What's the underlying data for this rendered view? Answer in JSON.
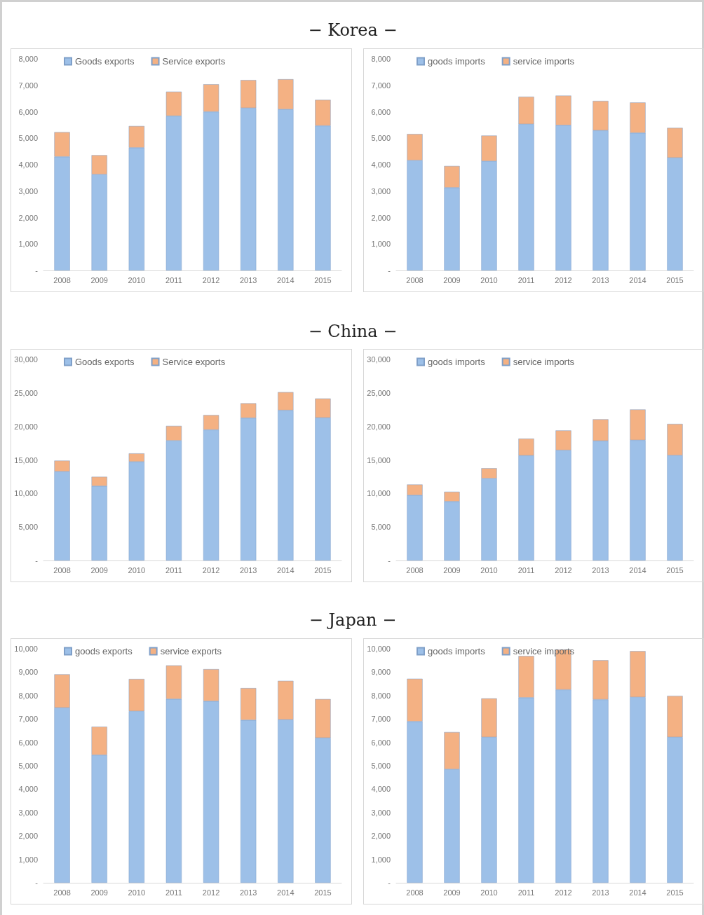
{
  "chart_data": [
    {
      "type": "bar",
      "title": "− Korea −",
      "categories": [
        "2008",
        "2009",
        "2010",
        "2011",
        "2012",
        "2013",
        "2014",
        "2015"
      ],
      "stacked": true,
      "legend": "top left",
      "grid": false,
      "ylim": [
        0,
        8000
      ],
      "yticks": [
        {
          "value": 0,
          "label": "-"
        },
        {
          "value": 1000,
          "label": "1,000"
        },
        {
          "value": 2000,
          "label": "2,000"
        },
        {
          "value": 3000,
          "label": "3,000"
        },
        {
          "value": 4000,
          "label": "4,000"
        },
        {
          "value": 5000,
          "label": "5,000"
        },
        {
          "value": 6000,
          "label": "6,000"
        },
        {
          "value": 7000,
          "label": "7,000"
        },
        {
          "value": 8000,
          "label": "8,000"
        }
      ],
      "series": [
        {
          "name": "Goods exports",
          "color": "#9dc0e8",
          "values": [
            4300,
            3630,
            4640,
            5840,
            6000,
            6140,
            6090,
            5470
          ]
        },
        {
          "name": "Service exports",
          "color": "#f4b183",
          "values": [
            930,
            730,
            820,
            920,
            1040,
            1060,
            1140,
            980
          ]
        }
      ]
    },
    {
      "type": "bar",
      "categories": [
        "2008",
        "2009",
        "2010",
        "2011",
        "2012",
        "2013",
        "2014",
        "2015"
      ],
      "stacked": true,
      "legend": "top left",
      "grid": false,
      "ylim": [
        0,
        8000
      ],
      "yticks": [
        {
          "value": 0,
          "label": "-"
        },
        {
          "value": 1000,
          "label": "1,000"
        },
        {
          "value": 2000,
          "label": "2,000"
        },
        {
          "value": 3000,
          "label": "3,000"
        },
        {
          "value": 4000,
          "label": "4,000"
        },
        {
          "value": 5000,
          "label": "5,000"
        },
        {
          "value": 6000,
          "label": "6,000"
        },
        {
          "value": 7000,
          "label": "7,000"
        },
        {
          "value": 8000,
          "label": "8,000"
        }
      ],
      "series": [
        {
          "name": "goods imports",
          "color": "#9dc0e8",
          "values": [
            4160,
            3130,
            4130,
            5530,
            5490,
            5290,
            5200,
            4260
          ]
        },
        {
          "name": "service imports",
          "color": "#f4b183",
          "values": [
            1000,
            820,
            970,
            1040,
            1120,
            1120,
            1150,
            1130
          ]
        }
      ]
    },
    {
      "type": "bar",
      "title": "− China −",
      "categories": [
        "2008",
        "2009",
        "2010",
        "2011",
        "2012",
        "2013",
        "2014",
        "2015"
      ],
      "stacked": true,
      "legend": "top left",
      "grid": false,
      "ylim": [
        0,
        30000
      ],
      "yticks": [
        {
          "value": 0,
          "label": "-"
        },
        {
          "value": 5000,
          "label": "5,000"
        },
        {
          "value": 10000,
          "label": "10,000"
        },
        {
          "value": 15000,
          "label": "15,000"
        },
        {
          "value": 20000,
          "label": "20,000"
        },
        {
          "value": 25000,
          "label": "25,000"
        },
        {
          "value": 30000,
          "label": "30,000"
        }
      ],
      "series": [
        {
          "name": "Goods exports",
          "color": "#9dc0e8",
          "values": [
            13270,
            11100,
            14730,
            17880,
            19500,
            21260,
            22410,
            21290
          ]
        },
        {
          "name": "Service exports",
          "color": "#f4b183",
          "values": [
            1630,
            1390,
            1250,
            2200,
            2200,
            2200,
            2710,
            2880
          ]
        }
      ]
    },
    {
      "type": "bar",
      "categories": [
        "2008",
        "2009",
        "2010",
        "2011",
        "2012",
        "2013",
        "2014",
        "2015"
      ],
      "stacked": true,
      "legend": "top left",
      "grid": false,
      "ylim": [
        0,
        30000
      ],
      "yticks": [
        {
          "value": 0,
          "label": "-"
        },
        {
          "value": 5000,
          "label": "5,000"
        },
        {
          "value": 10000,
          "label": "10,000"
        },
        {
          "value": 15000,
          "label": "15,000"
        },
        {
          "value": 20000,
          "label": "20,000"
        },
        {
          "value": 25000,
          "label": "25,000"
        },
        {
          "value": 30000,
          "label": "30,000"
        }
      ],
      "series": [
        {
          "name": "goods imports",
          "color": "#9dc0e8",
          "values": [
            9740,
            8800,
            12240,
            15650,
            16450,
            17840,
            17940,
            15680
          ]
        },
        {
          "name": "service imports",
          "color": "#f4b183",
          "values": [
            1600,
            1460,
            1530,
            2540,
            2950,
            3230,
            4590,
            4700
          ]
        }
      ]
    },
    {
      "type": "bar",
      "title": "− Japan −",
      "categories": [
        "2008",
        "2009",
        "2010",
        "2011",
        "2012",
        "2013",
        "2014",
        "2015"
      ],
      "stacked": true,
      "legend": "top left",
      "grid": false,
      "ylim": [
        0,
        10000
      ],
      "yticks": [
        {
          "value": 0,
          "label": "-"
        },
        {
          "value": 1000,
          "label": "1,000"
        },
        {
          "value": 2000,
          "label": "2,000"
        },
        {
          "value": 3000,
          "label": "3,000"
        },
        {
          "value": 4000,
          "label": "4,000"
        },
        {
          "value": 5000,
          "label": "5,000"
        },
        {
          "value": 6000,
          "label": "6,000"
        },
        {
          "value": 7000,
          "label": "7,000"
        },
        {
          "value": 8000,
          "label": "8,000"
        },
        {
          "value": 9000,
          "label": "9,000"
        },
        {
          "value": 10000,
          "label": "10,000"
        }
      ],
      "series": [
        {
          "name": "goods exports",
          "color": "#9dc0e8",
          "values": [
            7480,
            5460,
            7330,
            7850,
            7760,
            6950,
            6970,
            6190
          ]
        },
        {
          "name": "service exports",
          "color": "#f4b183",
          "values": [
            1430,
            1210,
            1380,
            1440,
            1370,
            1370,
            1660,
            1660
          ]
        }
      ]
    },
    {
      "type": "bar",
      "categories": [
        "2008",
        "2009",
        "2010",
        "2011",
        "2012",
        "2013",
        "2014",
        "2015"
      ],
      "stacked": true,
      "legend": "top left",
      "grid": false,
      "ylim": [
        0,
        10000
      ],
      "yticks": [
        {
          "value": 0,
          "label": "-"
        },
        {
          "value": 1000,
          "label": "1,000"
        },
        {
          "value": 2000,
          "label": "2,000"
        },
        {
          "value": 3000,
          "label": "3,000"
        },
        {
          "value": 4000,
          "label": "4,000"
        },
        {
          "value": 5000,
          "label": "5,000"
        },
        {
          "value": 6000,
          "label": "6,000"
        },
        {
          "value": 7000,
          "label": "7,000"
        },
        {
          "value": 8000,
          "label": "8,000"
        },
        {
          "value": 9000,
          "label": "9,000"
        },
        {
          "value": 10000,
          "label": "10,000"
        }
      ],
      "series": [
        {
          "name": "goods imports",
          "color": "#9dc0e8",
          "values": [
            6890,
            4850,
            6220,
            7910,
            8250,
            7830,
            7930,
            6220
          ]
        },
        {
          "name": "service imports",
          "color": "#f4b183",
          "values": [
            1830,
            1590,
            1660,
            1780,
            1720,
            1680,
            1970,
            1770
          ]
        }
      ]
    }
  ]
}
